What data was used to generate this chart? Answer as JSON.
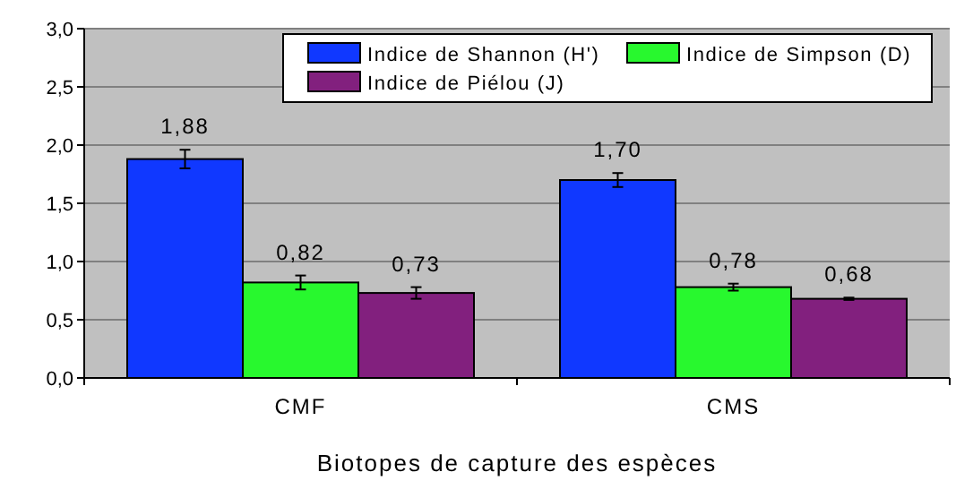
{
  "chart_data": {
    "type": "bar",
    "xlabel": "Biotopes de capture des espèces",
    "categories": [
      "CMF",
      "CMS"
    ],
    "series": [
      {
        "name": "Indice de Shannon (H')",
        "color": "#1038ff",
        "values": [
          1.88,
          1.7
        ],
        "errors": [
          0.08,
          0.06
        ],
        "value_labels": [
          "1,88",
          "1,70"
        ]
      },
      {
        "name": "Indice de Simpson (D)",
        "color": "#28f82e",
        "values": [
          0.82,
          0.78
        ],
        "errors": [
          0.06,
          0.03
        ],
        "value_labels": [
          "0,82",
          "0,78"
        ]
      },
      {
        "name": "Indice de Piélou (J)",
        "color": "#82207e",
        "values": [
          0.73,
          0.68
        ],
        "errors": [
          0.05,
          0.01
        ],
        "value_labels": [
          "0,73",
          "0,68"
        ]
      }
    ],
    "ylim": [
      0,
      3
    ],
    "yticks": [
      {
        "value": 0,
        "label": "0,0"
      },
      {
        "value": 0.5,
        "label": "0,5"
      },
      {
        "value": 1,
        "label": "1,0"
      },
      {
        "value": 1.5,
        "label": "1,5"
      },
      {
        "value": 2,
        "label": "2,0"
      },
      {
        "value": 2.5,
        "label": "2,5"
      },
      {
        "value": 3,
        "label": "3,0"
      }
    ],
    "grid": "y",
    "legend": "top right"
  }
}
